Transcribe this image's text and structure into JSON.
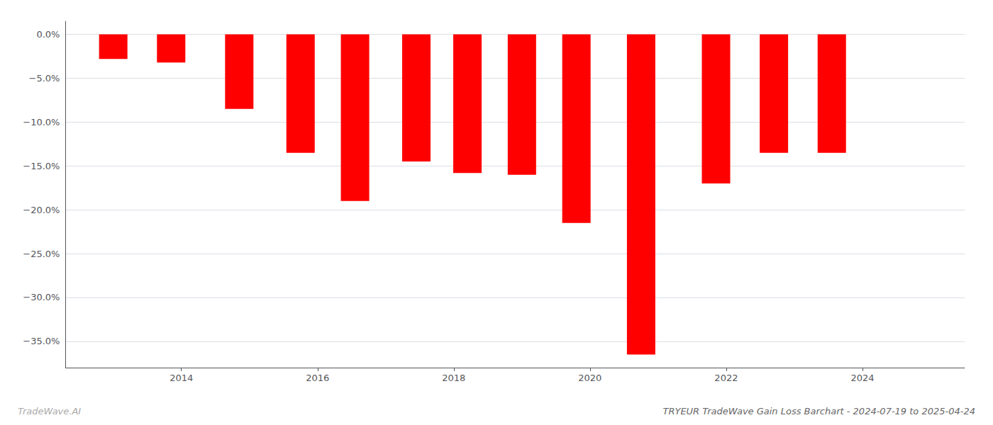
{
  "chart_data": {
    "type": "bar",
    "title": "TRYEUR TradeWave Gain Loss Barchart - 2024-07-19 to 2025-04-24",
    "annotations": [
      "TradeWave.AI"
    ],
    "x": [
      2013.0,
      2013.85,
      2014.85,
      2015.75,
      2016.55,
      2017.45,
      2018.2,
      2019.0,
      2019.8,
      2020.75,
      2021.85,
      2022.7,
      2023.55
    ],
    "values": [
      -2.8,
      -3.2,
      -8.5,
      -13.5,
      -19.0,
      -14.5,
      -15.8,
      -16.0,
      -21.5,
      -36.5,
      -17.0,
      -13.5,
      -13.5
    ],
    "color": "#ff0000",
    "xlim": [
      2012.3,
      2025.5
    ],
    "xticks": [
      2014,
      2016,
      2018,
      2020,
      2022,
      2024
    ],
    "ylim": [
      -38.0,
      1.5
    ],
    "yticks": [
      {
        "value": 0.0,
        "label": "0.0%"
      },
      {
        "value": -5.0,
        "label": "−5.0%"
      },
      {
        "value": -10.0,
        "label": "−10.0%"
      },
      {
        "value": -15.0,
        "label": "−15.0%"
      },
      {
        "value": -20.0,
        "label": "−20.0%"
      },
      {
        "value": -25.0,
        "label": "−25.0%"
      },
      {
        "value": -30.0,
        "label": "−30.0%"
      },
      {
        "value": -35.0,
        "label": "−35.0%"
      }
    ],
    "grid": true
  }
}
